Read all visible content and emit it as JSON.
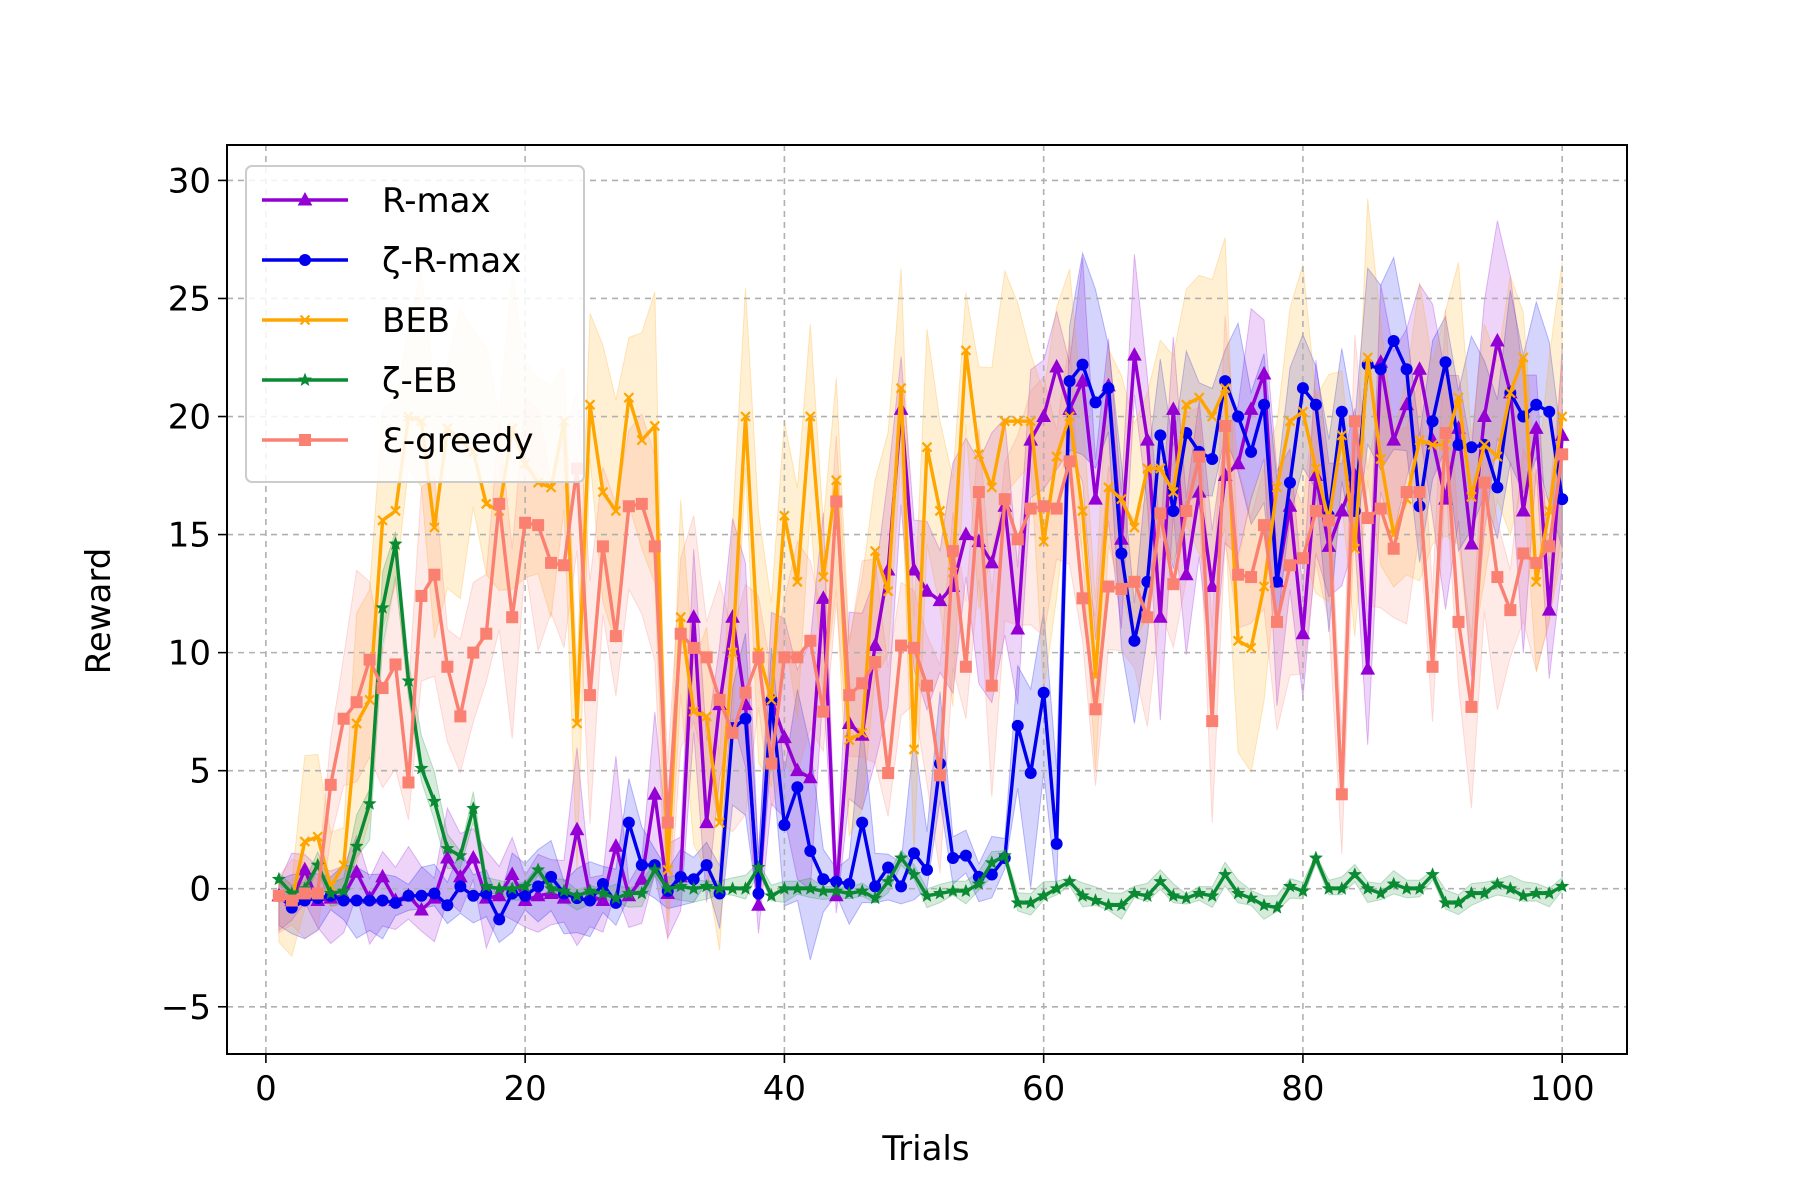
{
  "chart_data": {
    "type": "line",
    "title": "",
    "xlabel": "Trials",
    "ylabel": "Reward",
    "xlim": [
      -3,
      105
    ],
    "ylim": [
      -7,
      31.5
    ],
    "xticks": [
      0,
      20,
      40,
      60,
      80,
      100
    ],
    "yticks": [
      -5,
      0,
      5,
      10,
      15,
      20,
      25,
      30
    ],
    "grid": true,
    "legend_position": "top-left",
    "shaded_band": "variability band around each series",
    "x": [
      1,
      2,
      3,
      4,
      5,
      6,
      7,
      8,
      9,
      10,
      11,
      12,
      13,
      14,
      15,
      16,
      17,
      18,
      19,
      20,
      21,
      22,
      23,
      24,
      25,
      26,
      27,
      28,
      29,
      30,
      31,
      32,
      33,
      34,
      35,
      36,
      37,
      38,
      39,
      40,
      41,
      42,
      43,
      44,
      45,
      46,
      47,
      48,
      49,
      50,
      51,
      52,
      53,
      54,
      55,
      56,
      57,
      58,
      59,
      60,
      61,
      62,
      63,
      64,
      65,
      66,
      67,
      68,
      69,
      70,
      71,
      72,
      73,
      74,
      75,
      76,
      77,
      78,
      79,
      80,
      81,
      82,
      83,
      84,
      85,
      86,
      87,
      88,
      89,
      90,
      91,
      92,
      93,
      94,
      95,
      96,
      97,
      98,
      99,
      100
    ],
    "series": [
      {
        "name": "R-max",
        "color": "#9400D3",
        "marker": "triangle",
        "values": [
          -0.3,
          -0.5,
          0.8,
          -0.5,
          -0.4,
          -0.3,
          0.7,
          -0.4,
          0.5,
          -0.5,
          -0.3,
          -0.9,
          -0.4,
          1.3,
          0.5,
          1.3,
          -0.4,
          -0.3,
          0.6,
          -0.5,
          -0.3,
          -0.2,
          -0.4,
          2.5,
          -0.3,
          -0.5,
          1.8,
          -0.3,
          0.4,
          4.0,
          -0.2,
          0.5,
          11.5,
          2.8,
          7.8,
          11.5,
          7.8,
          -0.7,
          8.0,
          6.4,
          5.0,
          4.7,
          12.3,
          -0.3,
          7.0,
          6.5,
          10.3,
          13.5,
          20.3,
          13.5,
          12.6,
          12.2,
          12.8,
          15.0,
          14.7,
          13.8,
          16.2,
          11.0,
          19.0,
          20.0,
          22.1,
          20.3,
          21.5,
          16.5,
          21.3,
          14.8,
          22.6,
          19.0,
          11.5,
          20.3,
          13.3,
          16.8,
          12.8,
          17.5,
          18.0,
          20.3,
          21.8,
          13.0,
          16.2,
          10.8,
          17.5,
          14.5,
          16.0,
          17.5,
          9.3,
          22.3,
          19.0,
          20.5,
          22.0,
          19.0,
          16.5,
          19.5,
          14.6,
          20.0,
          23.2,
          21.0,
          16.0,
          19.5,
          11.8,
          19.2
        ]
      },
      {
        "name": "ζ-R-max",
        "color": "#0000EE",
        "marker": "circle",
        "values": [
          -0.3,
          -0.8,
          -0.5,
          -0.4,
          -0.3,
          -0.5,
          -0.5,
          -0.5,
          -0.5,
          -0.6,
          -0.3,
          -0.3,
          -0.2,
          -0.7,
          0.1,
          -0.3,
          -0.2,
          -1.3,
          -0.2,
          -0.3,
          0.1,
          0.5,
          -0.2,
          -0.4,
          -0.5,
          0.2,
          -0.6,
          2.8,
          1.0,
          1.0,
          -0.1,
          0.5,
          0.4,
          1.0,
          -0.2,
          6.8,
          7.2,
          -0.2,
          8.0,
          2.7,
          4.3,
          1.6,
          0.4,
          0.3,
          0.2,
          2.8,
          0.1,
          0.9,
          0.1,
          1.5,
          0.8,
          5.3,
          1.3,
          1.4,
          0.5,
          0.6,
          1.3,
          6.9,
          4.9,
          8.3,
          1.9,
          21.5,
          22.2,
          20.6,
          21.2,
          14.2,
          10.5,
          13.0,
          19.2,
          16.0,
          19.3,
          18.5,
          18.2,
          21.5,
          20.0,
          18.5,
          20.5,
          13.0,
          17.2,
          21.2,
          20.5,
          15.8,
          20.2,
          16.0,
          22.2,
          22.0,
          23.2,
          22.0,
          16.2,
          19.8,
          22.3,
          18.8,
          18.7,
          18.8,
          17.0,
          21.0,
          20.0,
          20.5,
          20.2,
          16.5
        ]
      },
      {
        "name": "BEB",
        "color": "#FFA500",
        "marker": "x",
        "values": [
          -0.3,
          -0.5,
          2.0,
          2.2,
          0.1,
          1.0,
          7.0,
          8.0,
          15.6,
          16.0,
          20.0,
          19.8,
          15.3,
          19.5,
          19.0,
          18.5,
          16.3,
          16.0,
          19.5,
          18.0,
          17.2,
          17.0,
          19.8,
          7.0,
          20.5,
          16.8,
          16.0,
          20.8,
          19.0,
          19.6,
          0.8,
          11.5,
          7.5,
          7.3,
          2.8,
          10.0,
          20.0,
          10.0,
          8.0,
          15.8,
          13.0,
          20.0,
          13.2,
          17.3,
          6.3,
          6.6,
          14.3,
          12.6,
          21.2,
          5.9,
          18.7,
          16.0,
          13.4,
          22.8,
          18.4,
          17.0,
          19.8,
          19.8,
          19.8,
          14.7,
          18.3,
          20.0,
          16.0,
          9.0,
          17.0,
          16.5,
          15.3,
          17.8,
          17.8,
          16.8,
          20.5,
          20.8,
          20.0,
          21.2,
          10.5,
          10.2,
          12.8,
          17.0,
          19.8,
          20.2,
          17.8,
          15.6,
          19.2,
          14.4,
          22.5,
          18.2,
          15.0,
          16.5,
          19.0,
          18.8,
          18.8,
          20.8,
          16.6,
          18.8,
          18.3,
          21.0,
          22.5,
          13.0,
          16.0,
          20.0
        ]
      },
      {
        "name": "ζ-EB",
        "color": "#0A8A32",
        "marker": "star",
        "values": [
          0.4,
          -0.2,
          0.0,
          1.0,
          -0.2,
          -0.1,
          1.8,
          3.6,
          11.9,
          14.6,
          8.8,
          5.1,
          3.7,
          1.7,
          1.4,
          3.4,
          0.1,
          0.0,
          0.0,
          0.1,
          0.8,
          0.0,
          -0.1,
          -0.3,
          -0.1,
          -0.2,
          -0.4,
          -0.2,
          -0.2,
          0.8,
          0.0,
          0.1,
          0.0,
          0.1,
          0.0,
          0.0,
          0.0,
          0.9,
          -0.3,
          0.0,
          0.0,
          0.0,
          -0.1,
          -0.1,
          -0.2,
          -0.1,
          -0.4,
          0.3,
          1.3,
          0.6,
          -0.3,
          -0.2,
          -0.1,
          -0.1,
          0.2,
          1.1,
          1.4,
          -0.6,
          -0.6,
          -0.3,
          0.0,
          0.3,
          -0.3,
          -0.5,
          -0.7,
          -0.7,
          -0.2,
          -0.3,
          0.3,
          -0.3,
          -0.4,
          -0.2,
          -0.3,
          0.6,
          -0.2,
          -0.4,
          -0.7,
          -0.8,
          0.1,
          -0.1,
          1.3,
          0.0,
          0.0,
          0.6,
          0.0,
          -0.2,
          0.2,
          0.0,
          0.0,
          0.6,
          -0.6,
          -0.6,
          -0.2,
          -0.2,
          0.2,
          0.0,
          -0.3,
          -0.2,
          -0.2,
          0.1
        ]
      },
      {
        "name": "Ɛ-greedy",
        "color": "#FA8072",
        "marker": "square",
        "values": [
          -0.3,
          -0.5,
          -0.2,
          -0.2,
          4.4,
          7.2,
          7.9,
          9.7,
          8.5,
          9.5,
          4.5,
          12.4,
          13.3,
          9.4,
          7.3,
          10.0,
          10.8,
          16.3,
          11.5,
          15.5,
          15.4,
          13.8,
          13.7,
          17.8,
          8.2,
          14.5,
          10.7,
          16.2,
          16.3,
          14.5,
          2.8,
          10.8,
          10.2,
          9.8,
          8.0,
          6.6,
          8.3,
          9.8,
          5.3,
          9.8,
          9.8,
          10.5,
          7.5,
          16.4,
          8.2,
          8.7,
          9.6,
          4.9,
          10.3,
          10.2,
          8.6,
          4.8,
          14.3,
          9.4,
          16.8,
          8.6,
          16.5,
          14.8,
          16.1,
          16.2,
          16.1,
          18.1,
          12.3,
          7.6,
          12.8,
          12.7,
          13.0,
          11.5,
          15.9,
          12.9,
          16.0,
          18.3,
          7.1,
          19.6,
          13.3,
          13.2,
          15.4,
          11.3,
          13.7,
          14.0,
          16.0,
          15.6,
          4.0,
          19.8,
          15.7,
          16.1,
          14.4,
          16.8,
          16.8,
          9.4,
          19.3,
          11.3,
          7.7,
          17.2,
          13.2,
          11.8,
          14.2,
          13.8,
          14.5,
          18.4
        ]
      }
    ]
  }
}
